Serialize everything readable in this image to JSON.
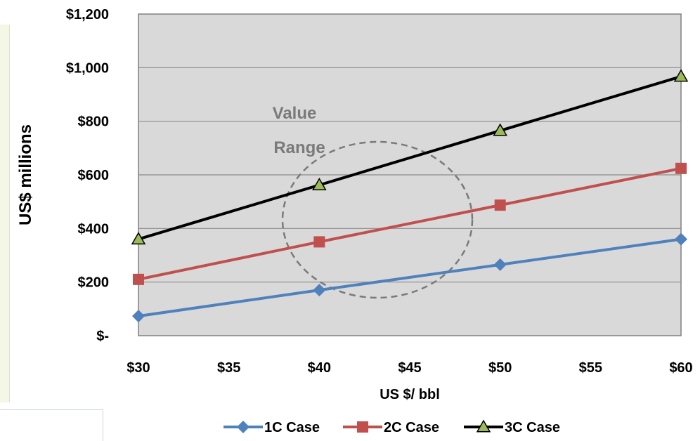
{
  "chart_data": {
    "type": "line",
    "title": "",
    "xlabel": "US $/ bbl",
    "ylabel": "US$ millions",
    "x_ticks": [
      "$30",
      "$35",
      "$40",
      "$45",
      "$50",
      "$55",
      "$60"
    ],
    "y_ticks": [
      "$-",
      "$200",
      "$400",
      "$600",
      "$800",
      "$1,000",
      "$1,200"
    ],
    "xlim": [
      30,
      60
    ],
    "ylim": [
      0,
      1200
    ],
    "grid": "horizontal",
    "plot_background": "#d9d9d9",
    "legend_position": "bottom",
    "x": [
      30,
      40,
      50,
      60
    ],
    "series": [
      {
        "name": "1C Case",
        "values": [
          73,
          170,
          265,
          360
        ],
        "color": "#4f81bd",
        "marker": "diamond"
      },
      {
        "name": "2C Case",
        "values": [
          210,
          350,
          487,
          624
        ],
        "color": "#c0504d",
        "marker": "square"
      },
      {
        "name": "3C Case",
        "values": [
          360,
          562,
          765,
          967
        ],
        "color": "#000000",
        "marker": "triangle",
        "marker_fill": "#9bbb59"
      }
    ],
    "annotations": [
      {
        "text_lines": [
          "Value",
          "Range"
        ],
        "shape": "dashed-ellipse",
        "color": "#7a7a7a"
      }
    ]
  }
}
